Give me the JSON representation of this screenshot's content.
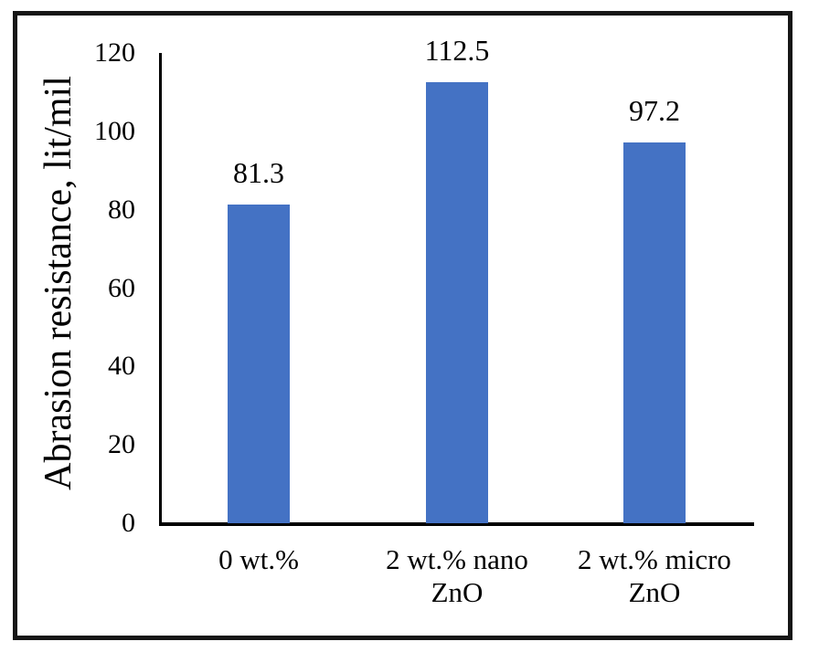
{
  "chart_data": {
    "type": "bar",
    "title": "",
    "categories": [
      "0 wt.%",
      "2 wt.% nano\nZnO",
      "2 wt.% micro\nZnO"
    ],
    "values": [
      81.3,
      112.5,
      97.2
    ],
    "value_labels": [
      "81.3",
      "112.5",
      "97.2"
    ],
    "xlabel": "",
    "ylabel": "Abrasion resistance, lit/mil",
    "ylim": [
      0,
      120
    ],
    "yticks": [
      0,
      20,
      40,
      60,
      80,
      100,
      120
    ],
    "grid": false,
    "legend": false,
    "bar_color": "#4472C4",
    "axis_color": "#000000",
    "frame_color": "#161616",
    "text_color": "#000000"
  }
}
